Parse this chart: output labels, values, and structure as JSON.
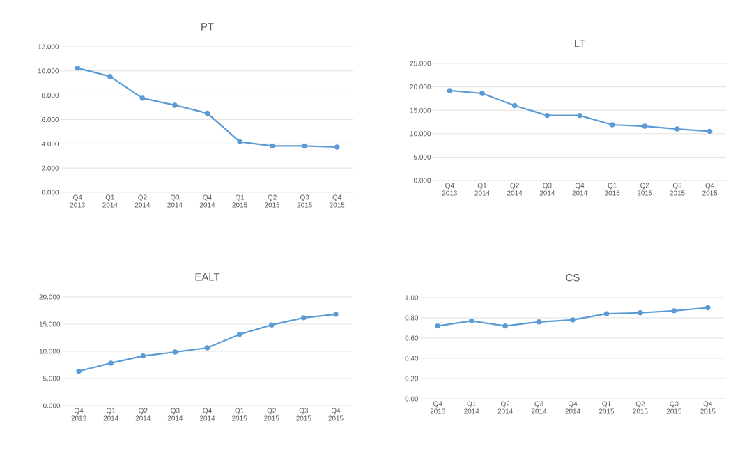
{
  "chart_data": [
    {
      "type": "line",
      "title": "PT",
      "categories": [
        "Q4 2013",
        "Q1 2014",
        "Q2 2014",
        "Q3 2014",
        "Q4 2014",
        "Q1 2015",
        "Q2 2015",
        "Q3 2015",
        "Q4 2015"
      ],
      "values": [
        10.24,
        9.55,
        7.76,
        7.18,
        6.52,
        4.17,
        3.82,
        3.82,
        3.73
      ],
      "color": "#5b9bd5",
      "marker": "circle",
      "grid": "y",
      "ylim": [
        0,
        12
      ],
      "yticks": [
        {
          "value": 0,
          "label": "0.000"
        },
        {
          "value": 2,
          "label": "2.000"
        },
        {
          "value": 4,
          "label": "4.000"
        },
        {
          "value": 6,
          "label": "6.000"
        },
        {
          "value": 8,
          "label": "8.000"
        },
        {
          "value": 10,
          "label": "10.000"
        },
        {
          "value": 12,
          "label": "12.000"
        }
      ]
    },
    {
      "type": "line",
      "title": "LT",
      "categories": [
        "Q4 2013",
        "Q1 2014",
        "Q2 2014",
        "Q3 2014",
        "Q4 2014",
        "Q1 2015",
        "Q2 2015",
        "Q3 2015",
        "Q4 2015"
      ],
      "values": [
        19.2,
        18.6,
        16.0,
        13.9,
        13.9,
        11.9,
        11.6,
        11.0,
        10.5
      ],
      "color": "#5b9bd5",
      "marker": "circle",
      "grid": "y",
      "ylim": [
        0,
        25
      ],
      "yticks": [
        {
          "value": 0,
          "label": "0.000"
        },
        {
          "value": 5,
          "label": "5.000"
        },
        {
          "value": 10,
          "label": "10.000"
        },
        {
          "value": 15,
          "label": "15.000"
        },
        {
          "value": 20,
          "label": "20.000"
        },
        {
          "value": 25,
          "label": "25.000"
        }
      ]
    },
    {
      "type": "line",
      "title": "EALT",
      "categories": [
        "Q4 2013",
        "Q1 2014",
        "Q2 2014",
        "Q3 2014",
        "Q4 2014",
        "Q1 2015",
        "Q2 2015",
        "Q3 2015",
        "Q4 2015"
      ],
      "values": [
        6.34,
        7.83,
        9.15,
        9.87,
        10.64,
        13.1,
        14.85,
        16.17,
        16.81
      ],
      "color": "#5b9bd5",
      "marker": "circle",
      "grid": "y",
      "ylim": [
        0,
        20
      ],
      "yticks": [
        {
          "value": 0,
          "label": "0.000"
        },
        {
          "value": 5,
          "label": "5.000"
        },
        {
          "value": 10,
          "label": "10.000"
        },
        {
          "value": 15,
          "label": "15.000"
        },
        {
          "value": 20,
          "label": "20.000"
        }
      ]
    },
    {
      "type": "line",
      "title": "CS",
      "categories": [
        "Q4 2013",
        "Q1 2014",
        "Q2 2014",
        "Q3 2014",
        "Q4 2014",
        "Q1 2015",
        "Q2 2015",
        "Q3 2015",
        "Q4 2015"
      ],
      "values": [
        0.72,
        0.77,
        0.72,
        0.76,
        0.78,
        0.84,
        0.85,
        0.87,
        0.9
      ],
      "color": "#5b9bd5",
      "marker": "circle",
      "grid": "y",
      "ylim": [
        0,
        1
      ],
      "yticks": [
        {
          "value": 0,
          "label": "0.00"
        },
        {
          "value": 0.2,
          "label": "0.20"
        },
        {
          "value": 0.4,
          "label": "0.40"
        },
        {
          "value": 0.6,
          "label": "0.60"
        },
        {
          "value": 0.8,
          "label": "0.80"
        },
        {
          "value": 1,
          "label": "1.00"
        }
      ]
    }
  ]
}
